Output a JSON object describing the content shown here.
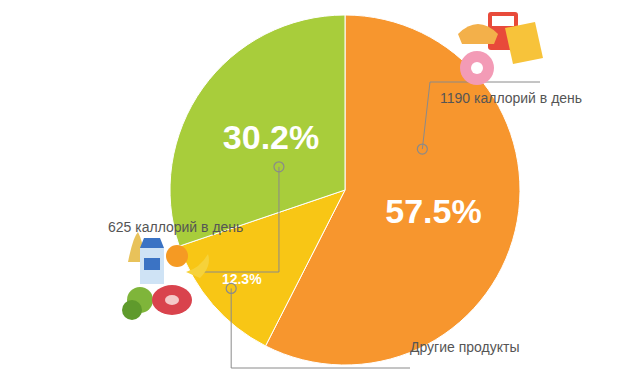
{
  "chart_data": {
    "type": "pie",
    "categories": [
      "1190 каллорий в день",
      "Другие продукты",
      "625 каллорий в день"
    ],
    "values": [
      57.5,
      12.3,
      30.2
    ],
    "value_labels": [
      "57.5%",
      "12.3%",
      "30.2%"
    ],
    "colors": [
      "#f7962e",
      "#f8c615",
      "#a8cd3b"
    ],
    "data_labels": true
  }
}
